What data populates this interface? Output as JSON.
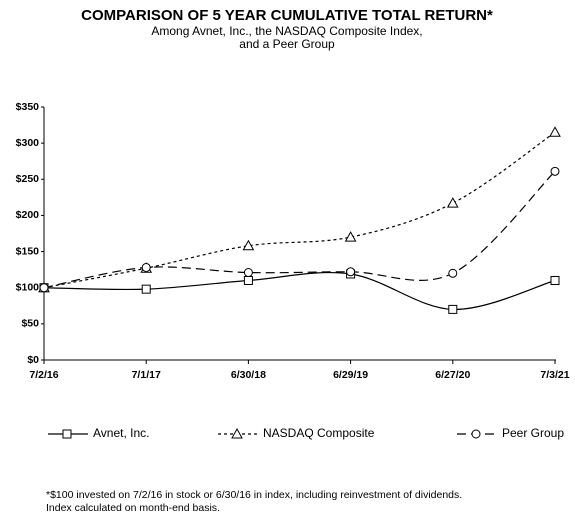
{
  "chart_data": {
    "type": "line",
    "title": "COMPARISON OF 5 YEAR CUMULATIVE TOTAL RETURN*",
    "subtitle": [
      "Among Avnet, Inc., the NASDAQ Composite Index,",
      "and a Peer Group"
    ],
    "categories": [
      "7/2/16",
      "7/1/17",
      "6/30/18",
      "6/29/19",
      "6/27/20",
      "7/3/21"
    ],
    "series": [
      {
        "name": "Avnet, Inc.",
        "color": "#000000",
        "dash": "none",
        "marker": "square",
        "values": [
          100,
          98,
          110,
          119,
          70,
          110
        ]
      },
      {
        "name": "NASDAQ Composite",
        "color": "#000000",
        "dash": "3,3",
        "marker": "triangle",
        "values": [
          100,
          127,
          158,
          170,
          217,
          315
        ]
      },
      {
        "name": "Peer Group",
        "color": "#000000",
        "dash": "9,5",
        "marker": "circle",
        "values": [
          100,
          128,
          121,
          122,
          120,
          261
        ]
      }
    ],
    "ylim": [
      0,
      350
    ],
    "yticks": [
      {
        "value": 0,
        "label": "$0"
      },
      {
        "value": 50,
        "label": "$50"
      },
      {
        "value": 100,
        "label": "$100"
      },
      {
        "value": 150,
        "label": "$150"
      },
      {
        "value": 200,
        "label": "$200"
      },
      {
        "value": 250,
        "label": "$250"
      },
      {
        "value": 300,
        "label": "$300"
      },
      {
        "value": 350,
        "label": "$350"
      }
    ],
    "grid": false,
    "legend": "bottom",
    "note": [
      "*$100 invested on 7/2/16 in stock or 6/30/16 in index, including reinvestment of dividends.",
      "Index calculated on month-end basis."
    ]
  }
}
